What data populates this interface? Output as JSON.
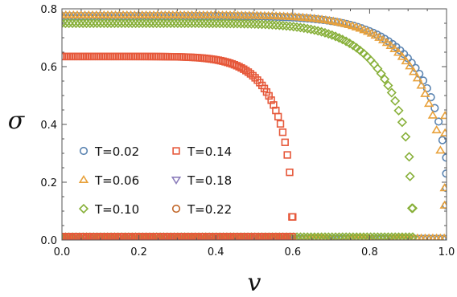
{
  "chart_data": {
    "type": "scatter",
    "xlabel": "v",
    "ylabel": "σ",
    "xlim": [
      0,
      1
    ],
    "ylim": [
      0,
      0.8
    ],
    "x_ticks": [
      "0.0",
      "0.2",
      "0.4",
      "0.6",
      "0.8",
      "1.0"
    ],
    "y_ticks": [
      "0.0",
      "0.2",
      "0.4",
      "0.6",
      "0.8"
    ],
    "grid": false,
    "legend_position": "lower-left",
    "series": [
      {
        "name": "T=0.02",
        "marker": "circle",
        "color": "#5b84b1",
        "upper_branch": {
          "s0": 0.775,
          "vc": 0.9993,
          "sc": 0.18
        },
        "lower_branch": {
          "s0": 0.004,
          "vc": 0.9993,
          "sc": 0.18
        },
        "extra_points": [
          [
            0.999,
            0.285
          ],
          [
            0.999,
            0.23
          ],
          [
            0.999,
            0.12
          ]
        ]
      },
      {
        "name": "T=0.06",
        "marker": "triangle-up",
        "color": "#e8a13b",
        "upper_branch": {
          "s0": 0.778,
          "vc": 0.994,
          "sc": 0.13
        },
        "lower_branch": {
          "s0": 0.006,
          "vc": 0.994,
          "sc": 0.13
        },
        "extra_points": [
          [
            0.996,
            0.43
          ],
          [
            0.996,
            0.37
          ],
          [
            0.995,
            0.18
          ],
          [
            0.995,
            0.12
          ]
        ]
      },
      {
        "name": "T=0.10",
        "marker": "diamond",
        "color": "#88b03a",
        "upper_branch": {
          "s0": 0.75,
          "vc": 0.912,
          "sc": 0.11
        },
        "lower_branch": {
          "s0": 0.01,
          "vc": 0.912,
          "sc": 0.11
        },
        "extra_points": [
          [
            0.905,
            0.22
          ],
          [
            0.91,
            0.11
          ]
        ]
      },
      {
        "name": "T=0.14",
        "marker": "square",
        "color": "#e6583a",
        "upper_branch": {
          "s0": 0.635,
          "vc": 0.598,
          "sc": 0.08
        },
        "lower_branch": {
          "s0": 0.012,
          "vc": 0.598,
          "sc": 0.08
        },
        "extra_points": [
          [
            0.6,
            0.08
          ]
        ]
      },
      {
        "name": "T=0.18",
        "marker": "triangle-down",
        "color": "#8c7dbb",
        "upper_branch": null,
        "lower_branch": null,
        "extra_points": []
      },
      {
        "name": "T=0.22",
        "marker": "circle",
        "color": "#c2672a",
        "upper_branch": null,
        "lower_branch": null,
        "extra_points": []
      }
    ]
  }
}
